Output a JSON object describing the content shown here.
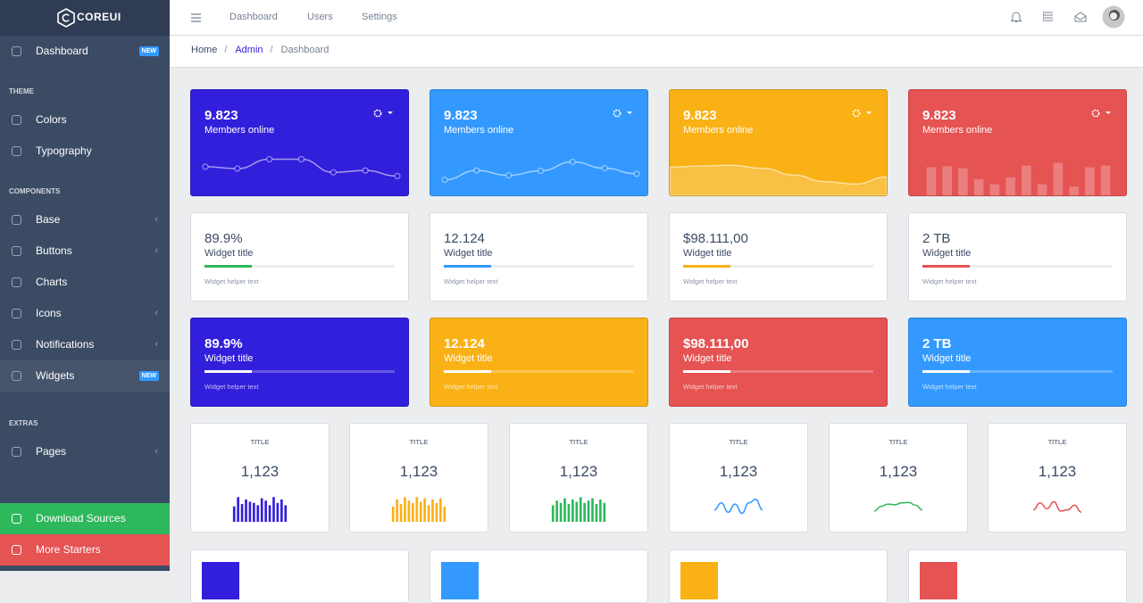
{
  "brand": "COREUI",
  "header": {
    "nav": [
      "Dashboard",
      "Users",
      "Settings"
    ]
  },
  "breadcrumb": [
    "Home",
    "Admin",
    "Dashboard"
  ],
  "sidebar": {
    "items": [
      {
        "label": "Dashboard",
        "badge": "NEW"
      },
      {
        "heading": "THEME"
      },
      {
        "label": "Colors"
      },
      {
        "label": "Typography"
      },
      {
        "heading": "COMPONENTS"
      },
      {
        "label": "Base",
        "submenu": true
      },
      {
        "label": "Buttons",
        "submenu": true
      },
      {
        "label": "Charts"
      },
      {
        "label": "Icons",
        "submenu": true
      },
      {
        "label": "Notifications",
        "submenu": true
      },
      {
        "label": "Widgets",
        "badge": "NEW",
        "active": true
      },
      {
        "heading": "EXTRAS"
      },
      {
        "label": "Pages",
        "submenu": true
      }
    ],
    "footer": [
      {
        "label": "Download Sources",
        "color": "#2eb85c"
      },
      {
        "label": "More Starters",
        "color": "#e55353"
      }
    ]
  },
  "stat_cards": [
    {
      "value": "9.823",
      "label": "Members online",
      "color": "#321fdb",
      "chart": {
        "type": "line",
        "ylim": [
          0,
          100
        ],
        "values": [
          55,
          50,
          75,
          75,
          40,
          45,
          30
        ]
      }
    },
    {
      "value": "9.823",
      "label": "Members online",
      "color": "#3399ff",
      "chart": {
        "type": "line",
        "ylim": [
          0,
          100
        ],
        "values": [
          20,
          45,
          32,
          44,
          68,
          51,
          36
        ]
      }
    },
    {
      "value": "9.823",
      "label": "Members online",
      "color": "#f9b115",
      "chart": {
        "type": "area",
        "ylim": [
          0,
          100
        ],
        "values": [
          65,
          68,
          70,
          62,
          45,
          28,
          22,
          40
        ]
      }
    },
    {
      "value": "9.823",
      "label": "Members online",
      "color": "#e55353",
      "chart": {
        "type": "bar",
        "ylim": [
          0,
          100
        ],
        "values": [
          75,
          78,
          72,
          40,
          25,
          45,
          80,
          25,
          88,
          18,
          75,
          80
        ]
      }
    }
  ],
  "progress_cards": [
    {
      "value": "89.9%",
      "title": "Widget title",
      "helper": "Widget helper text",
      "progress": 25,
      "color": "#2eb85c"
    },
    {
      "value": "12.124",
      "title": "Widget title",
      "helper": "Widget helper text",
      "progress": 25,
      "color": "#3399ff"
    },
    {
      "value": "$98.111,00",
      "title": "Widget title",
      "helper": "Widget helper text",
      "progress": 25,
      "color": "#f9b115"
    },
    {
      "value": "2 TB",
      "title": "Widget title",
      "helper": "Widget helper text",
      "progress": 25,
      "color": "#e55353"
    }
  ],
  "color_progress_cards": [
    {
      "value": "89.9%",
      "title": "Widget title",
      "helper": "Widget helper text",
      "progress": 25,
      "color": "#321fdb"
    },
    {
      "value": "12.124",
      "title": "Widget title",
      "helper": "Widget helper text",
      "progress": 25,
      "color": "#f9b115"
    },
    {
      "value": "$98.111,00",
      "title": "Widget title",
      "helper": "Widget helper text",
      "progress": 25,
      "color": "#e55353"
    },
    {
      "value": "2 TB",
      "title": "Widget title",
      "helper": "Widget helper text",
      "progress": 25,
      "color": "#3399ff"
    }
  ],
  "mini_cards": [
    {
      "title": "TITLE",
      "value": "1,123",
      "color": "#321fdb",
      "chart": {
        "type": "bar",
        "ylim": [
          0,
          100
        ],
        "values": [
          55,
          95,
          65,
          85,
          75,
          70,
          60,
          90,
          80,
          60,
          95,
          70,
          85,
          60
        ]
      }
    },
    {
      "title": "TITLE",
      "value": "1,123",
      "color": "#f9b115",
      "chart": {
        "type": "bar",
        "ylim": [
          0,
          100
        ],
        "values": [
          55,
          85,
          65,
          95,
          80,
          70,
          95,
          75,
          90,
          60,
          85,
          70,
          90,
          55
        ]
      }
    },
    {
      "title": "TITLE",
      "value": "1,123",
      "color": "#2eb85c",
      "chart": {
        "type": "bar",
        "ylim": [
          0,
          100
        ],
        "values": [
          60,
          80,
          70,
          90,
          65,
          85,
          75,
          95,
          70,
          80,
          90,
          65,
          85,
          70
        ]
      }
    },
    {
      "title": "TITLE",
      "value": "1,123",
      "color": "#3399ff",
      "chart": {
        "type": "line",
        "ylim": [
          0,
          100
        ],
        "values": [
          40,
          70,
          30,
          65,
          25,
          70,
          85,
          40
        ]
      }
    },
    {
      "title": "TITLE",
      "value": "1,123",
      "color": "#2eb85c",
      "chart": {
        "type": "line",
        "ylim": [
          0,
          100
        ],
        "values": [
          35,
          55,
          65,
          62,
          70,
          72,
          60,
          40
        ]
      }
    },
    {
      "title": "TITLE",
      "value": "1,123",
      "color": "#e55353",
      "chart": {
        "type": "line",
        "ylim": [
          0,
          100
        ],
        "values": [
          40,
          70,
          45,
          75,
          35,
          40,
          60,
          30
        ]
      }
    }
  ],
  "bottom_cards": [
    {
      "color": "#321fdb"
    },
    {
      "color": "#3399ff"
    },
    {
      "color": "#f9b115"
    },
    {
      "color": "#e55353"
    }
  ]
}
